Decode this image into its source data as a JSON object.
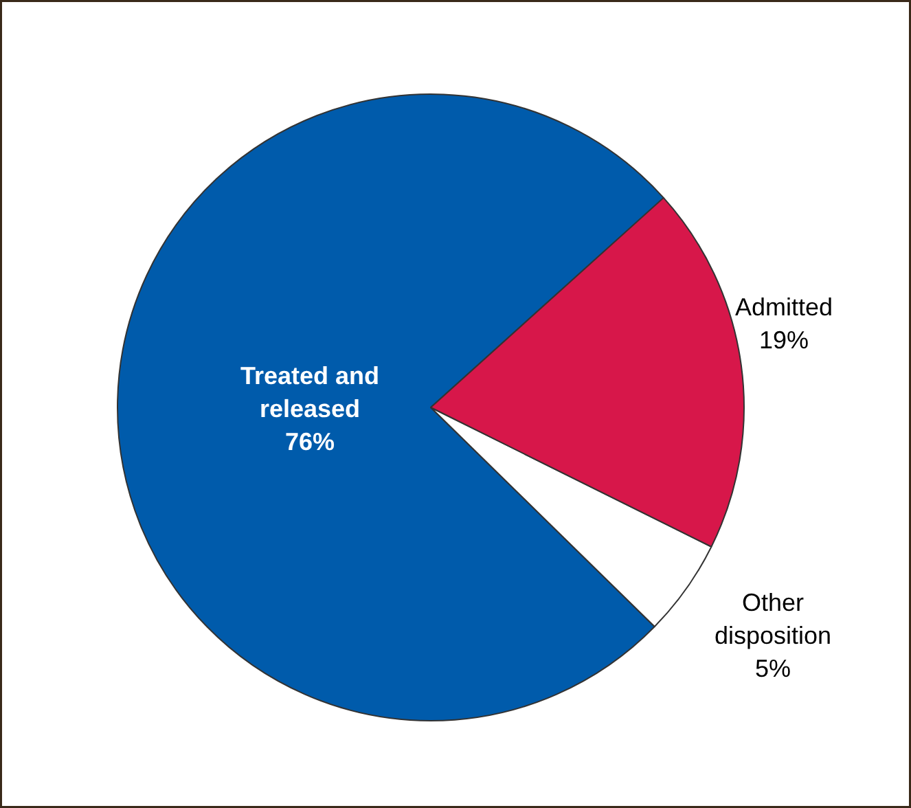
{
  "chart_data": {
    "type": "pie",
    "categories": [
      "Treated and\nreleased",
      "Other\ndisposition",
      "Admitted"
    ],
    "values": [
      76,
      5,
      19
    ],
    "value_labels": [
      "76%",
      "5%",
      "19%"
    ],
    "colors": [
      "#005bab",
      "#ffffff",
      "#d7174a"
    ]
  }
}
